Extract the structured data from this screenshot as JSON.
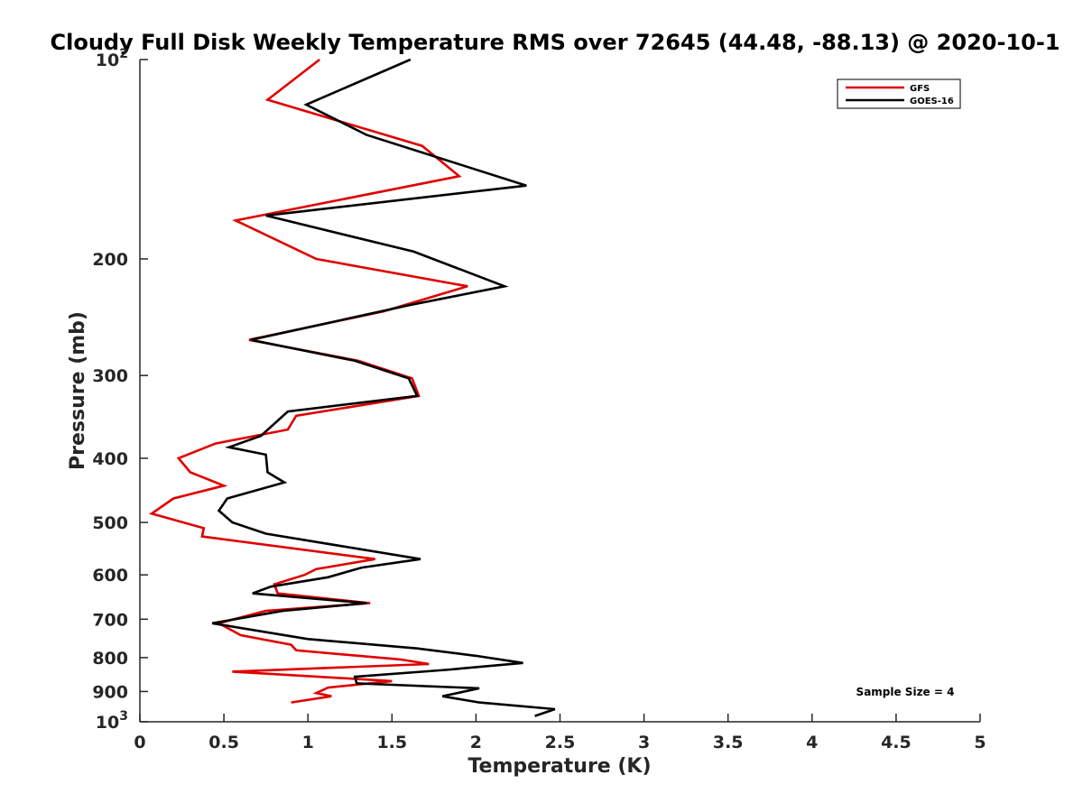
{
  "chart_data": {
    "type": "line",
    "title": "Cloudy Full Disk Weekly Temperature RMS over 72645 (44.48, -88.13) @ 2020-10-1",
    "xlabel": "Temperature (K)",
    "ylabel": "Pressure (mb)",
    "xlim": [
      0,
      5
    ],
    "ylim": [
      100,
      1000
    ],
    "y_scale": "log",
    "y_reversed": true,
    "grid": false,
    "legend_position": "top-right",
    "x_ticks": [
      "0",
      "0.5",
      "1",
      "1.5",
      "2",
      "2.5",
      "3",
      "3.5",
      "4",
      "4.5",
      "5"
    ],
    "y_ticks": [
      {
        "value": 100,
        "base": "10",
        "exp": "2"
      },
      {
        "value": 200,
        "label": "200"
      },
      {
        "value": 300,
        "label": "300"
      },
      {
        "value": 400,
        "label": "400"
      },
      {
        "value": 500,
        "label": "500"
      },
      {
        "value": 600,
        "label": "600"
      },
      {
        "value": 700,
        "label": "700"
      },
      {
        "value": 800,
        "label": "800"
      },
      {
        "value": 900,
        "label": "900"
      },
      {
        "value": 1000,
        "base": "10",
        "exp": "3"
      }
    ],
    "series": [
      {
        "name": "GFS",
        "color": "#e00000",
        "points": [
          [
            1.07,
            100
          ],
          [
            0.76,
            115
          ],
          [
            1.68,
            135
          ],
          [
            1.9,
            150
          ],
          [
            0.57,
            175
          ],
          [
            1.05,
            200
          ],
          [
            1.95,
            220
          ],
          [
            1.45,
            240
          ],
          [
            0.65,
            265
          ],
          [
            1.3,
            285
          ],
          [
            1.62,
            303
          ],
          [
            1.66,
            322
          ],
          [
            0.93,
            345
          ],
          [
            0.88,
            362
          ],
          [
            0.45,
            380
          ],
          [
            0.23,
            400
          ],
          [
            0.3,
            420
          ],
          [
            0.5,
            440
          ],
          [
            0.2,
            460
          ],
          [
            0.07,
            485
          ],
          [
            0.38,
            510
          ],
          [
            0.37,
            525
          ],
          [
            1.4,
            568
          ],
          [
            1.05,
            588
          ],
          [
            0.98,
            600
          ],
          [
            0.8,
            620
          ],
          [
            0.82,
            640
          ],
          [
            1.37,
            662
          ],
          [
            0.75,
            680
          ],
          [
            0.47,
            710
          ],
          [
            0.6,
            740
          ],
          [
            0.9,
            765
          ],
          [
            0.93,
            780
          ],
          [
            1.55,
            805
          ],
          [
            1.72,
            818
          ],
          [
            0.55,
            840
          ],
          [
            1.5,
            868
          ],
          [
            1.12,
            888
          ],
          [
            1.05,
            905
          ],
          [
            1.14,
            915
          ],
          [
            0.9,
            935
          ]
        ]
      },
      {
        "name": "GOES-16",
        "color": "#000000",
        "points": [
          [
            1.61,
            100
          ],
          [
            0.99,
            117
          ],
          [
            1.35,
            130
          ],
          [
            2.3,
            155
          ],
          [
            0.75,
            172
          ],
          [
            1.63,
            195
          ],
          [
            2.17,
            220
          ],
          [
            1.6,
            235
          ],
          [
            0.66,
            265
          ],
          [
            1.28,
            285
          ],
          [
            1.6,
            303
          ],
          [
            1.65,
            322
          ],
          [
            0.88,
            340
          ],
          [
            0.72,
            370
          ],
          [
            0.53,
            385
          ],
          [
            0.75,
            395
          ],
          [
            0.76,
            420
          ],
          [
            0.86,
            435
          ],
          [
            0.52,
            460
          ],
          [
            0.47,
            480
          ],
          [
            0.55,
            500
          ],
          [
            0.75,
            520
          ],
          [
            1.67,
            568
          ],
          [
            1.32,
            585
          ],
          [
            1.12,
            605
          ],
          [
            0.78,
            625
          ],
          [
            0.67,
            640
          ],
          [
            1.35,
            662
          ],
          [
            0.85,
            680
          ],
          [
            0.43,
            710
          ],
          [
            1.0,
            750
          ],
          [
            1.65,
            775
          ],
          [
            2.0,
            795
          ],
          [
            2.28,
            815
          ],
          [
            1.82,
            835
          ],
          [
            1.28,
            855
          ],
          [
            1.29,
            875
          ],
          [
            2.02,
            890
          ],
          [
            1.8,
            915
          ],
          [
            2.02,
            935
          ],
          [
            2.47,
            957
          ],
          [
            2.35,
            980
          ]
        ]
      }
    ],
    "annotation": "Sample Size = 4"
  }
}
